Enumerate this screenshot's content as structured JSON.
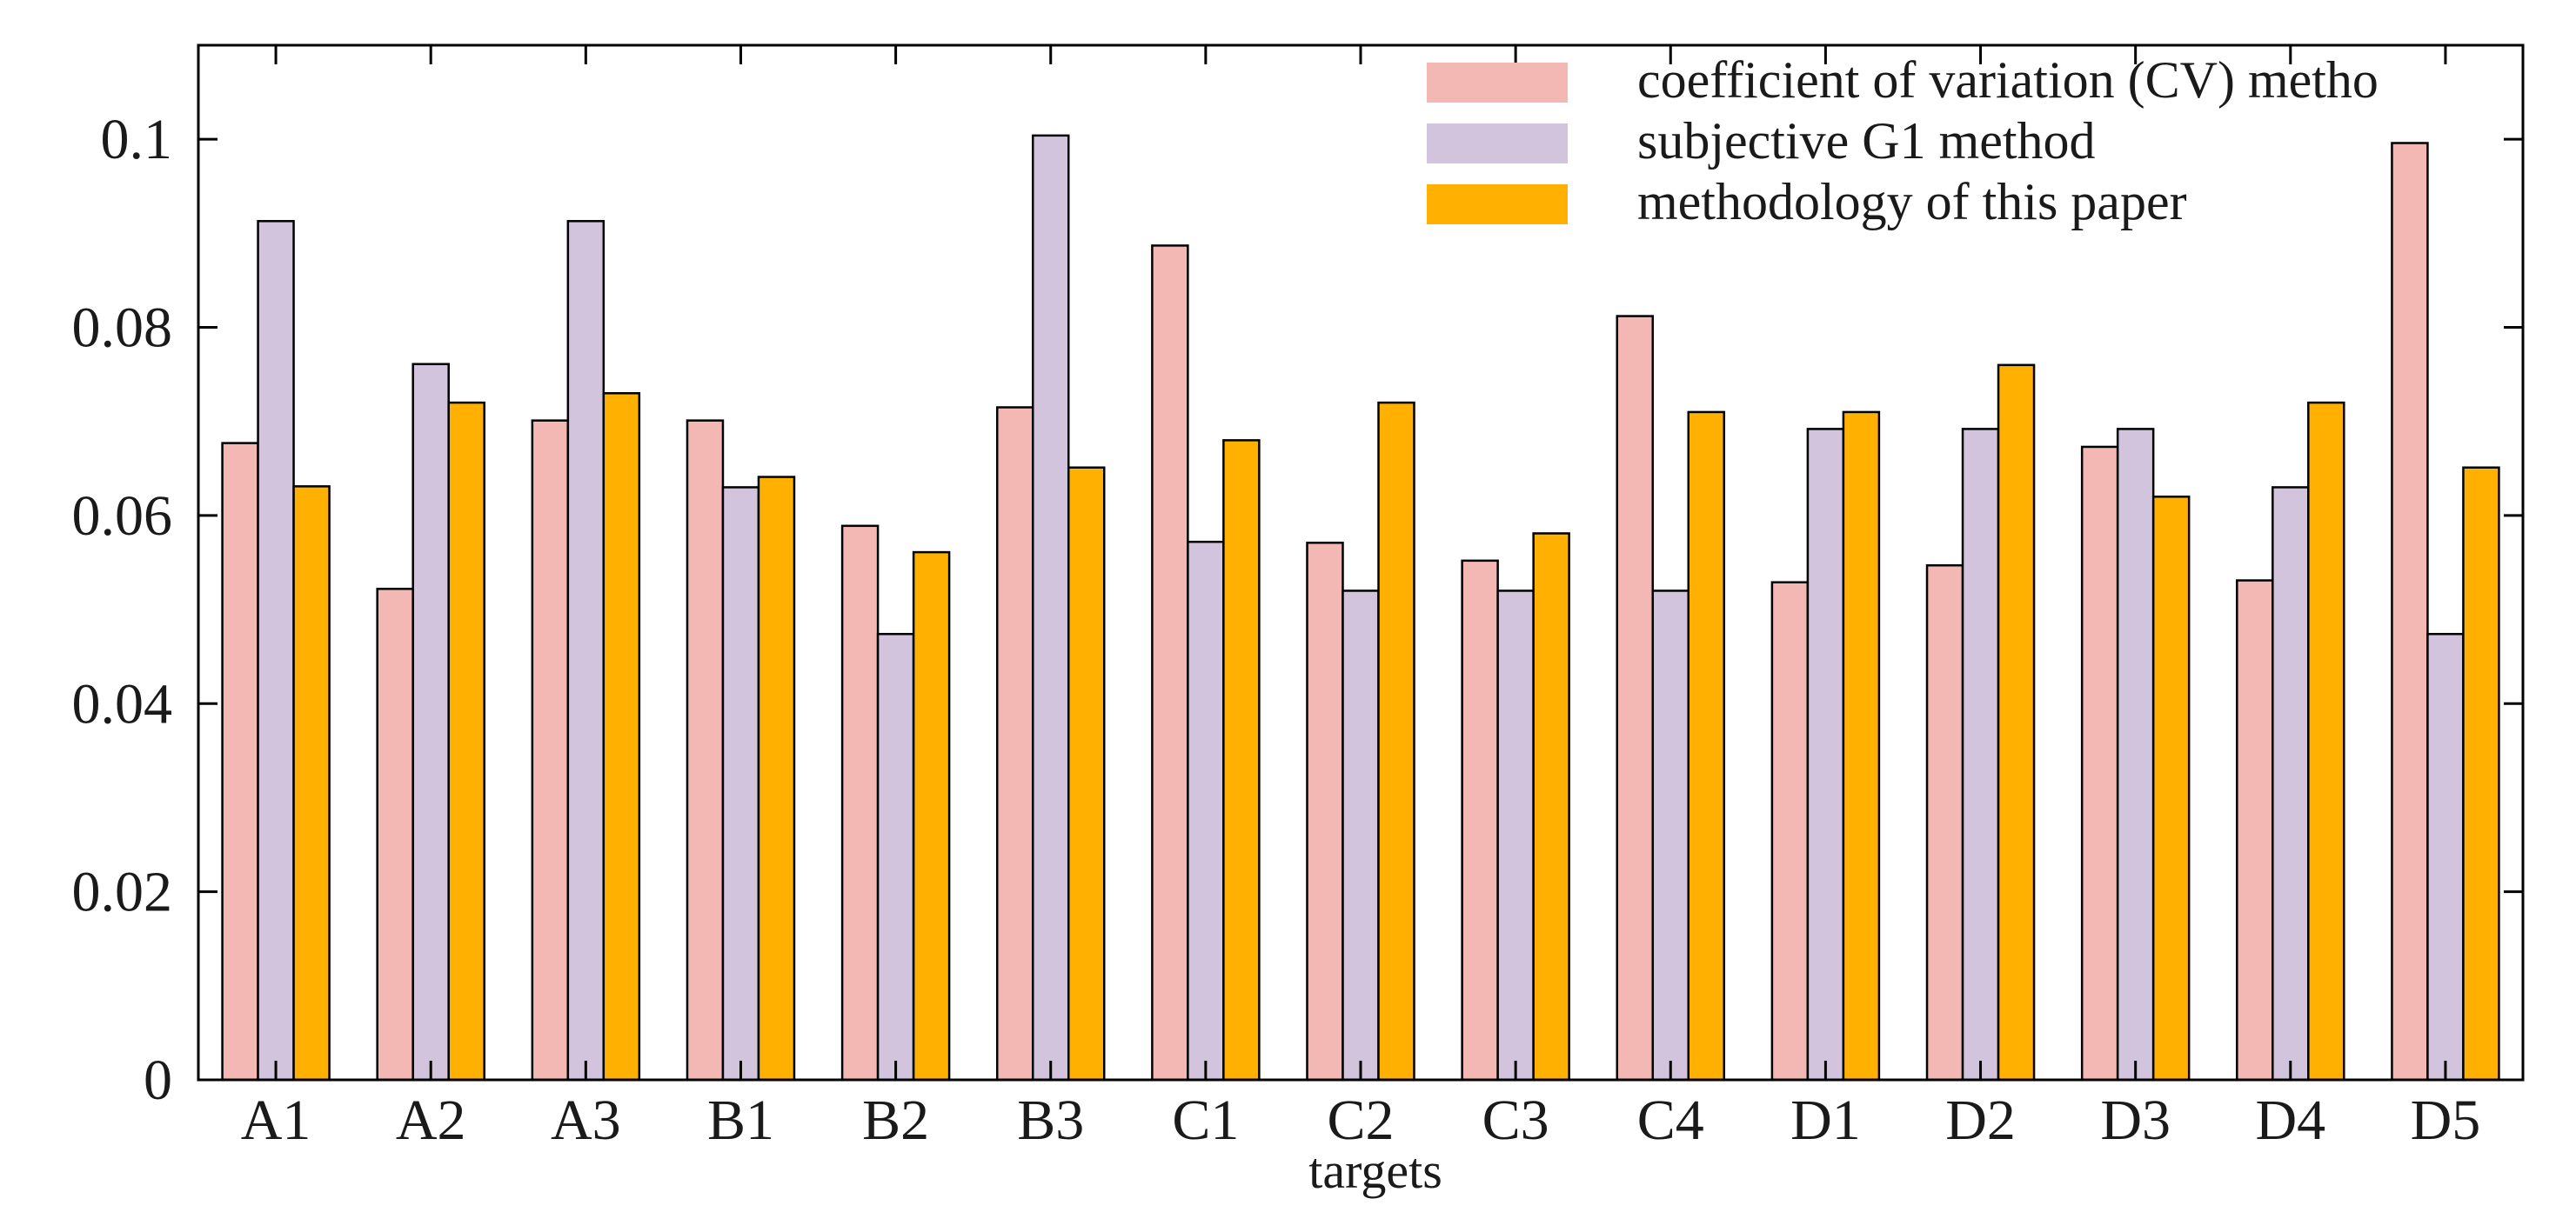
{
  "chart_data": {
    "type": "bar",
    "title": "",
    "xlabel": "targets",
    "ylabel": "",
    "ylim": [
      0,
      0.11
    ],
    "yticks": [
      0,
      0.02,
      0.04,
      0.06,
      0.08,
      0.1
    ],
    "ytick_labels": [
      "0",
      "0.02",
      "0.04",
      "0.06",
      "0.08",
      "0.1"
    ],
    "legend_position": "top-right",
    "grid": false,
    "categories": [
      "A1",
      "A2",
      "A3",
      "B1",
      "B2",
      "B3",
      "C1",
      "C2",
      "C3",
      "C4",
      "D1",
      "D2",
      "D3",
      "D4",
      "D5"
    ],
    "series": [
      {
        "name": "coefficient of variation (CV) method",
        "legend_label": "coefficient of variation (CV) metho",
        "color": "#F4B8B4",
        "values": [
          0.0677,
          0.0522,
          0.0701,
          0.0701,
          0.0589,
          0.0715,
          0.0887,
          0.0571,
          0.0552,
          0.0812,
          0.0529,
          0.0547,
          0.0673,
          0.0531,
          0.0996
        ]
      },
      {
        "name": "subjective G1 method",
        "legend_label": "subjective G1 method",
        "color": "#D2C4DD",
        "values": [
          0.0913,
          0.0761,
          0.0913,
          0.063,
          0.0474,
          0.1004,
          0.0572,
          0.052,
          0.052,
          0.052,
          0.0692,
          0.0692,
          0.0692,
          0.063,
          0.0474
        ]
      },
      {
        "name": "methodology of this paper",
        "legend_label": "methodology of this paper",
        "color": "#FFB000",
        "values": [
          0.0631,
          0.072,
          0.073,
          0.0641,
          0.0561,
          0.0651,
          0.068,
          0.072,
          0.0581,
          0.071,
          0.071,
          0.076,
          0.062,
          0.072,
          0.0651
        ]
      }
    ]
  }
}
